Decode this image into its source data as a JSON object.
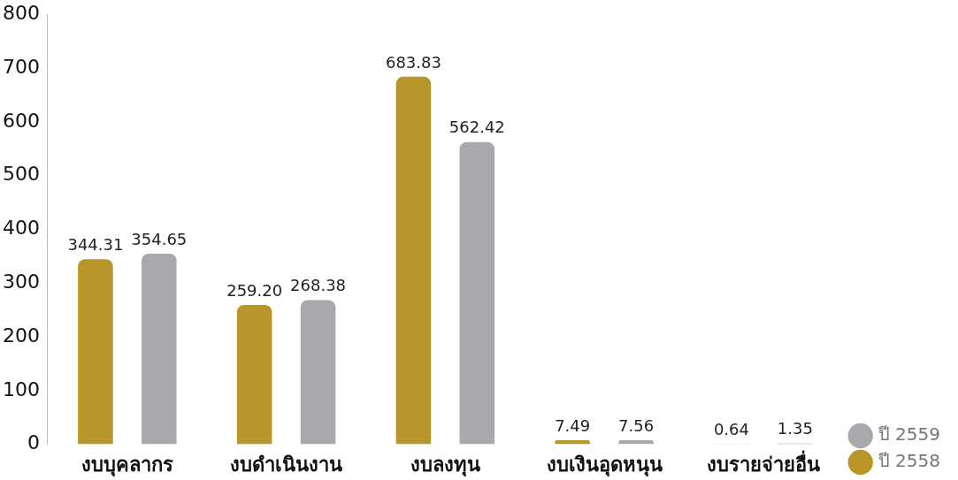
{
  "chart_data": {
    "type": "bar",
    "categories": [
      "งบบุคลากร",
      "งบดำเนินงาน",
      "งบลงทุน",
      "งบเงินอุดหนุน",
      "งบรายจ่ายอื่น"
    ],
    "series": [
      {
        "name": "ปี 2558",
        "color": "#b8962a",
        "values": [
          344.31,
          259.2,
          683.83,
          7.49,
          0.64
        ],
        "value_labels": [
          "344.31",
          "259.20",
          "683.83",
          "7.49",
          "0.64"
        ]
      },
      {
        "name": "ปี 2559",
        "color": "#a9a9ad",
        "values": [
          354.65,
          268.38,
          562.42,
          7.56,
          1.35
        ],
        "value_labels": [
          "354.65",
          "268.38",
          "562.42",
          "7.56",
          "1.35"
        ]
      }
    ],
    "ylim": [
      0,
      800
    ],
    "yticks": [
      0,
      100,
      200,
      300,
      400,
      500,
      600,
      700,
      800
    ],
    "grid": false,
    "legend": "bottom right"
  }
}
